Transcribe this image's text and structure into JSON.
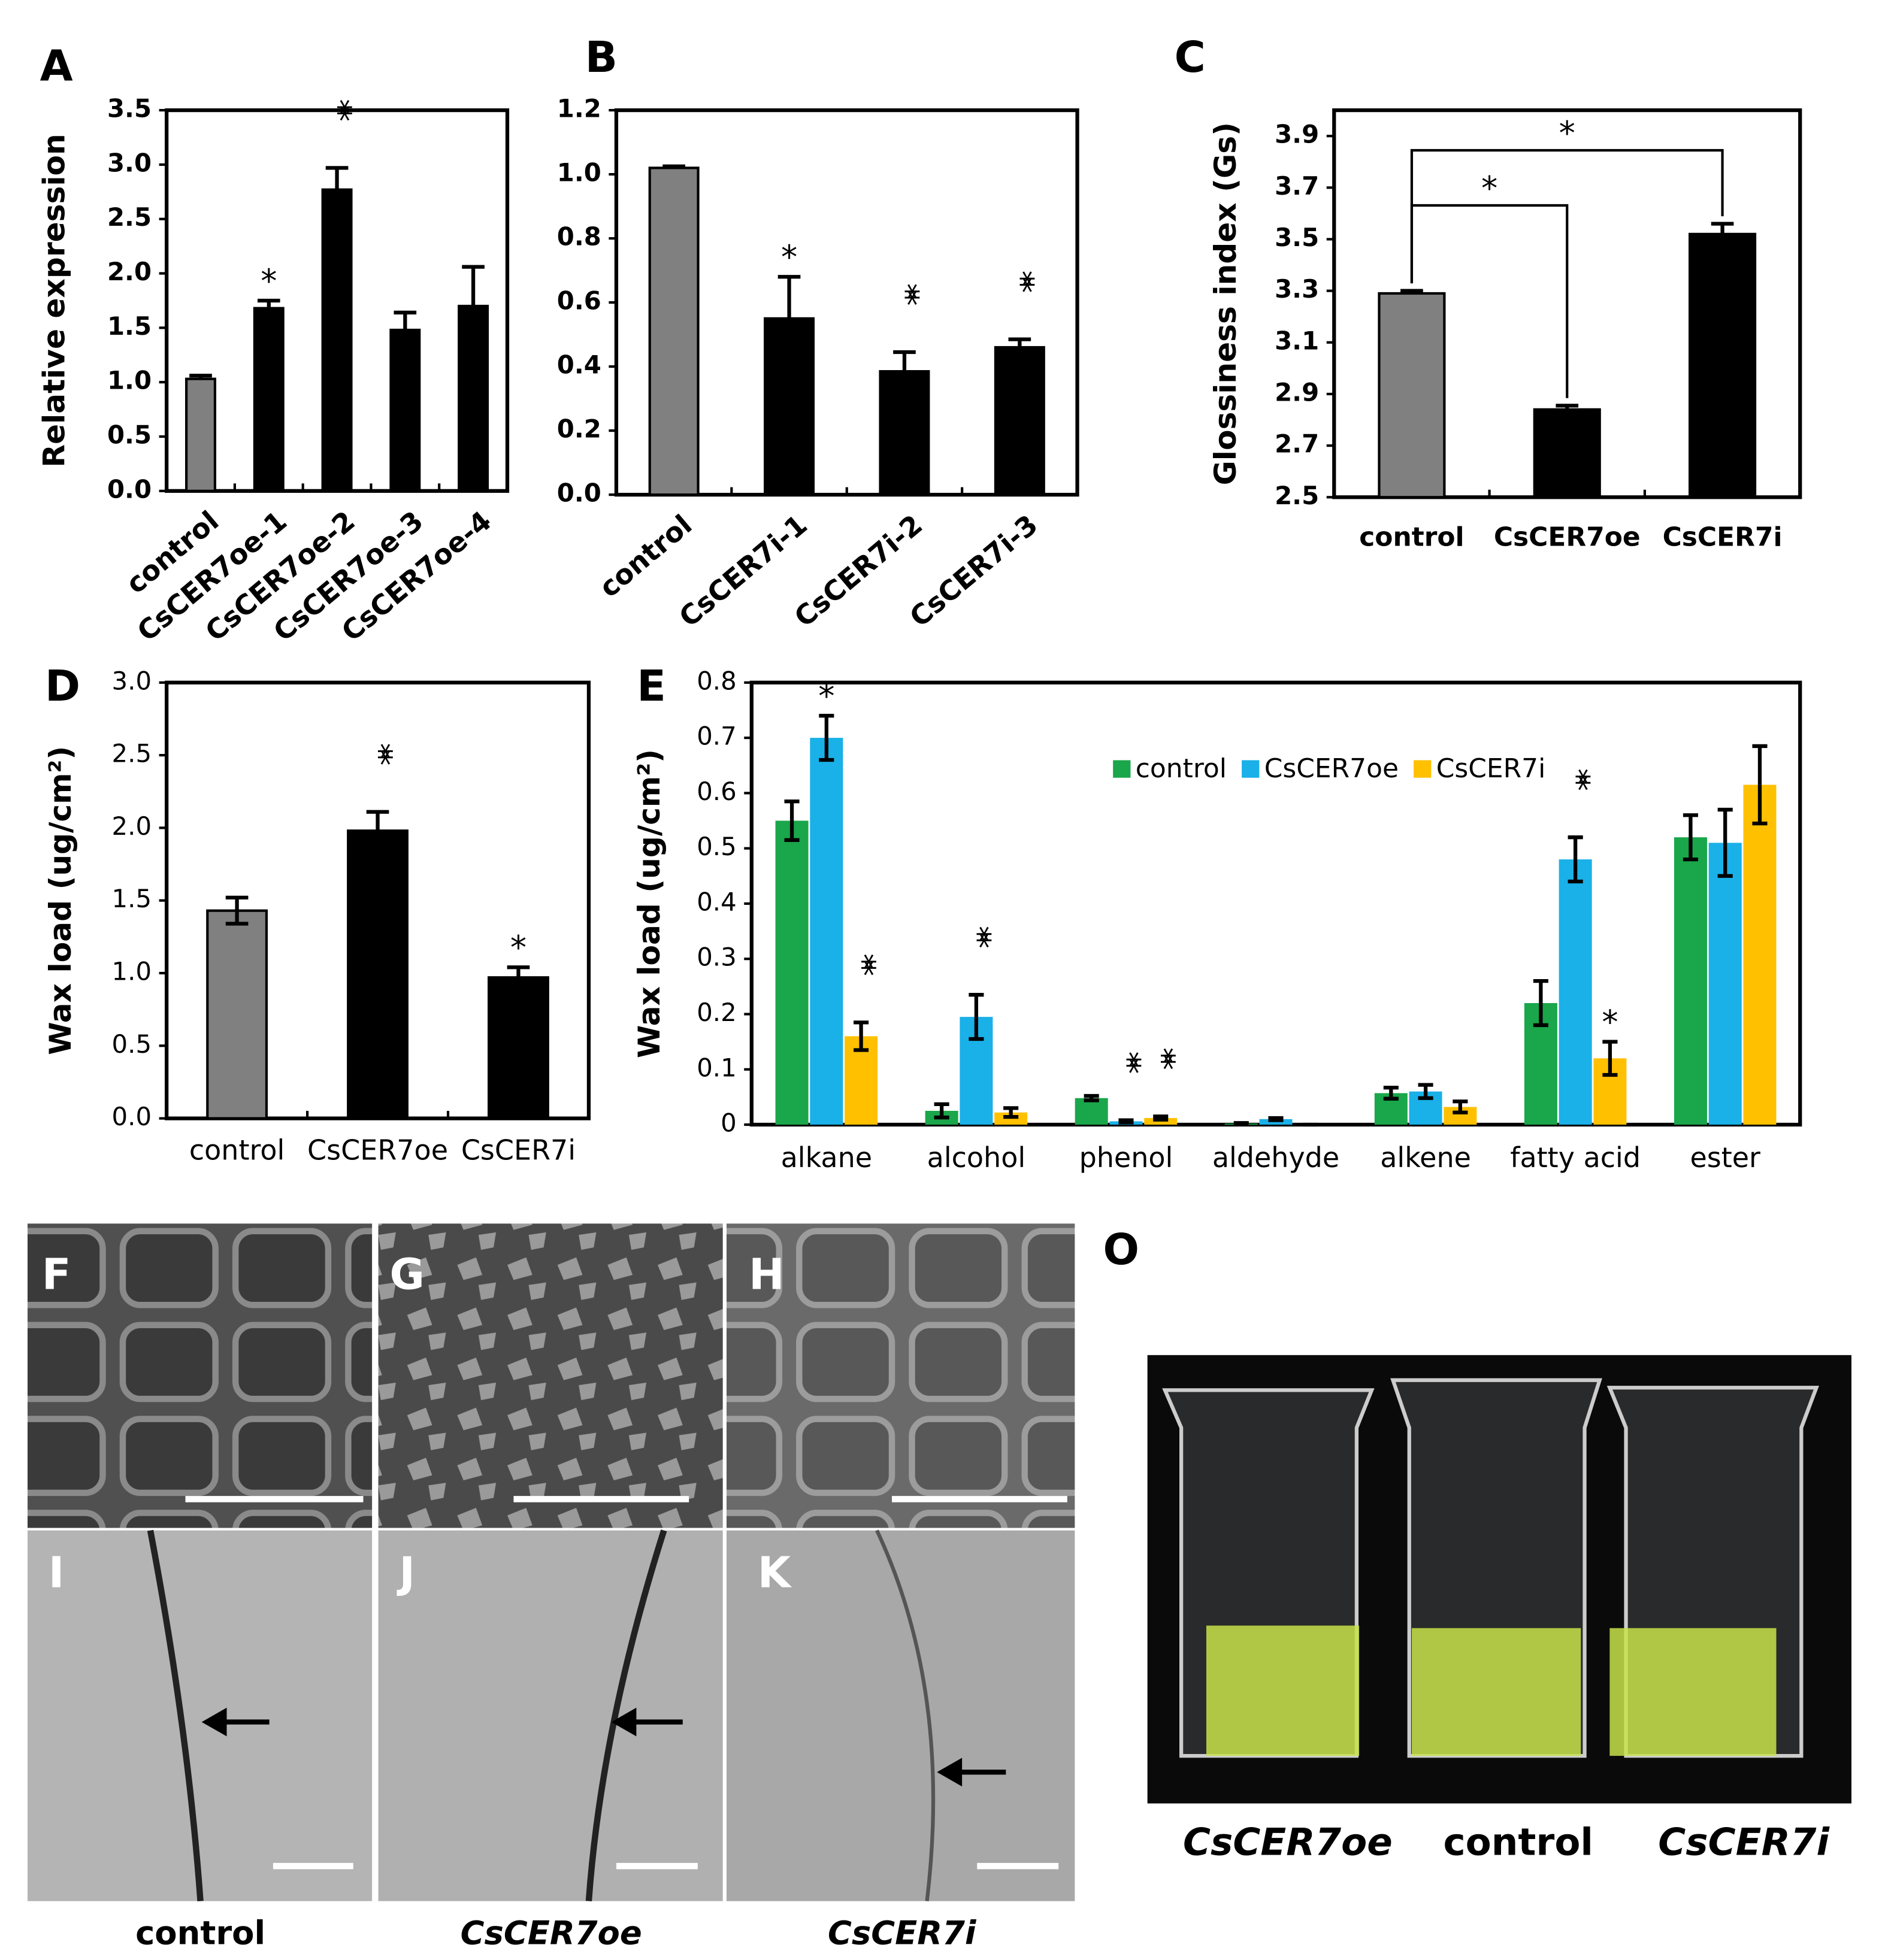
{
  "chart_data": [
    {
      "type": "bar",
      "label": "A",
      "ylabel": "Relative expression",
      "categories": [
        "control",
        "CsCER7oe-1",
        "CsCER7oe-2",
        "CsCER7oe-3",
        "CsCER7oe-4"
      ],
      "values": [
        1.03,
        1.68,
        2.77,
        1.48,
        1.7
      ],
      "errors": [
        0.03,
        0.07,
        0.2,
        0.16,
        0.36
      ],
      "error_bars": "upper",
      "colors": [
        "#808080",
        "#000000",
        "#000000",
        "#000000",
        "#000000"
      ],
      "significance": [
        null,
        "*",
        "**",
        null,
        null
      ],
      "ylim": [
        0,
        3.5
      ],
      "yticks": [
        {
          "value": 0,
          "label": "0.0"
        },
        0.5,
        {
          "value": 1,
          "label": "1.0"
        },
        1.5,
        {
          "value": 2,
          "label": "2.0"
        },
        2.5,
        {
          "value": 3,
          "label": "3.0"
        },
        3.5
      ]
    },
    {
      "type": "bar",
      "label": "B",
      "categories": [
        "control",
        "CsCER7i-1",
        "CsCER7i-2",
        "CsCER7i-3"
      ],
      "values": [
        1.02,
        0.55,
        0.385,
        0.46
      ],
      "errors": [
        0.005,
        0.13,
        0.06,
        0.025
      ],
      "error_bars": "upper",
      "colors": [
        "#808080",
        "#000000",
        "#000000",
        "#000000"
      ],
      "significance": [
        null,
        "*",
        "**",
        "**"
      ],
      "ylim": [
        0,
        1.2
      ],
      "yticks": [
        {
          "value": 0,
          "label": "0.0"
        },
        0.2,
        0.4,
        0.6,
        0.8,
        {
          "value": 1,
          "label": "1.0"
        },
        1.2
      ]
    },
    {
      "type": "bar",
      "label": "C",
      "ylabel": "Glossiness index (Gs)",
      "categories": [
        "control",
        "CsCER7oe",
        "CsCER7i"
      ],
      "values": [
        3.29,
        2.84,
        3.52
      ],
      "errors": [
        0.01,
        0.015,
        0.04
      ],
      "error_bars": "upper",
      "colors": [
        "#808080",
        "#000000",
        "#000000"
      ],
      "significance": [
        null,
        "*",
        "*"
      ],
      "significance_style": "bracket",
      "ylim": [
        2.5,
        4.0
      ],
      "yticks": [
        2.5,
        2.7,
        2.9,
        3.1,
        3.3,
        3.5,
        3.7,
        3.9
      ]
    },
    {
      "type": "bar",
      "label": "D",
      "ylabel": "Wax load (ug/cm²)",
      "categories": [
        "control",
        "CsCER7oe",
        "CsCER7i"
      ],
      "values": [
        1.43,
        1.98,
        0.97
      ],
      "errors": [
        0.09,
        0.13,
        0.07
      ],
      "error_bars": "both",
      "colors": [
        "#808080",
        "#000000",
        "#000000"
      ],
      "significance": [
        null,
        "**",
        "*"
      ],
      "ylim": [
        0,
        3
      ],
      "yticks": [
        {
          "value": 0,
          "label": "0.0"
        },
        0.5,
        {
          "value": 1,
          "label": "1.0"
        },
        1.5,
        {
          "value": 2,
          "label": "2.0"
        },
        2.5,
        {
          "value": 3,
          "label": "3.0"
        }
      ]
    },
    {
      "type": "bar",
      "label": "E",
      "ylabel": "Wax load (ug/cm²)",
      "categories": [
        "alkane",
        "alcohol",
        "phenol",
        "aldehyde",
        "alkene",
        "fatty acid",
        "ester"
      ],
      "error_bars": "both",
      "legend": "top",
      "series": [
        {
          "name": "control",
          "color": "#1aa64a",
          "values": [
            0.55,
            0.025,
            0.048,
            0.002,
            0.057,
            0.22,
            0.52
          ],
          "errors": [
            0.035,
            0.012,
            0.004,
            0.001,
            0.01,
            0.04,
            0.04
          ],
          "significance": [
            null,
            null,
            null,
            null,
            null,
            null,
            null
          ]
        },
        {
          "name": "CsCER7oe",
          "color": "#1ab0e8",
          "values": [
            0.7,
            0.195,
            0.006,
            0.01,
            0.06,
            0.48,
            0.51
          ],
          "errors": [
            0.04,
            0.04,
            0.002,
            0.002,
            0.012,
            0.04,
            0.06
          ],
          "significance": [
            "*",
            "**",
            "**",
            null,
            null,
            "**",
            null
          ]
        },
        {
          "name": "CsCER7i",
          "color": "#ffc000",
          "values": [
            0.16,
            0.022,
            0.012,
            0,
            0.032,
            0.12,
            0.615
          ],
          "errors": [
            0.025,
            0.008,
            0.003,
            0,
            0.01,
            0.03,
            0.07
          ],
          "significance": [
            "**",
            null,
            "**",
            null,
            null,
            "*",
            null
          ]
        }
      ],
      "ylim": [
        0,
        0.8
      ],
      "yticks": [
        0,
        0.1,
        0.2,
        0.3,
        0.4,
        0.5,
        0.6,
        0.7,
        0.8
      ]
    }
  ],
  "image_panels": {
    "labels": [
      "F",
      "G",
      "H",
      "I",
      "J",
      "K",
      "O"
    ],
    "sem_captions": [
      "control",
      "CsCER7oe",
      "CsCER7i"
    ],
    "photo_captions": [
      "CsCER7oe",
      "control",
      "CsCER7i"
    ]
  }
}
